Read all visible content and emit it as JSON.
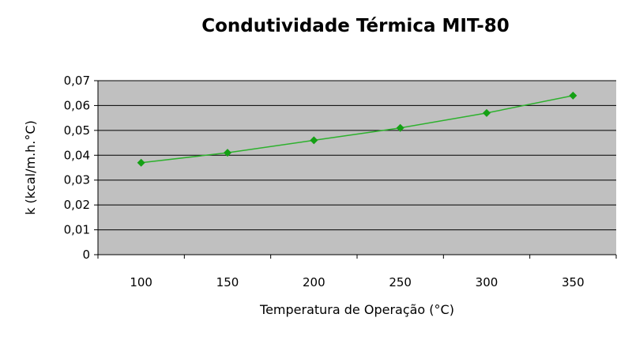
{
  "chart_data": {
    "type": "line",
    "title": "Condutividade Térmica MIT-80",
    "xlabel": "Temperatura de Operação (°C)",
    "ylabel": "k (kcal/m.h.°C)",
    "x": [
      100,
      150,
      200,
      250,
      300,
      350
    ],
    "series": [
      {
        "values": [
          0.037,
          0.041,
          0.046,
          0.051,
          0.057,
          0.064
        ]
      }
    ],
    "xtick_labels": [
      "100",
      "150",
      "200",
      "250",
      "300",
      "350"
    ],
    "ytick_labels": [
      "0",
      "0,01",
      "0,02",
      "0,03",
      "0,04",
      "0,05",
      "0,06",
      "0,07"
    ],
    "ylim": [
      0,
      0.07
    ],
    "grid": true,
    "legend": "none",
    "colors": {
      "plot_background": "#c0c0c0",
      "series": "#2db12d",
      "marker": "#14a014",
      "gridline": "#000000"
    }
  }
}
